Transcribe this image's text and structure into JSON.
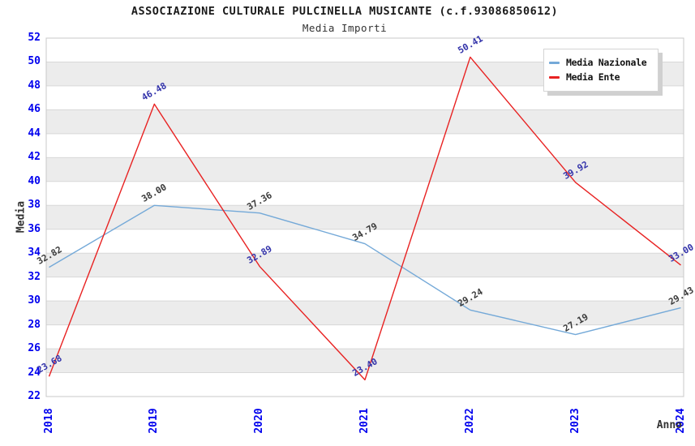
{
  "title": "ASSOCIAZIONE CULTURALE PULCINELLA MUSICANTE (c.f.93086850612)",
  "subtitle": "Media Importi",
  "chart_data": {
    "type": "line",
    "title": "ASSOCIAZIONE CULTURALE PULCINELLA MUSICANTE (c.f.93086850612)",
    "subtitle": "Media Importi",
    "x": [
      "2018",
      "2019",
      "2020",
      "2021",
      "2022",
      "2023",
      "2024"
    ],
    "series": [
      {
        "name": "Media Nazionale",
        "color": "#74a9d8",
        "label_color": "#3a3a3a",
        "values": [
          32.82,
          38.0,
          37.36,
          34.79,
          29.24,
          27.19,
          29.43
        ]
      },
      {
        "name": "Media Ente",
        "color": "#e82222",
        "label_color": "#3333aa",
        "values": [
          23.68,
          46.48,
          32.89,
          23.4,
          50.41,
          39.92,
          33.0
        ]
      }
    ],
    "xlabel": "Anno",
    "ylabel": "Media",
    "ylim": [
      22,
      52
    ],
    "ytick_step": 2,
    "yticks": [
      22,
      24,
      26,
      28,
      30,
      32,
      34,
      36,
      38,
      40,
      42,
      44,
      46,
      48,
      50,
      52
    ],
    "grid": true,
    "alternating_bands": true,
    "legend_position": "top-right"
  },
  "colors": {
    "tick_label": "#0000ee",
    "band": "#ececec",
    "grid_line": "#d8d8d8",
    "plot_border": "#c8c8c8",
    "axis_title": "#333333",
    "background": "#ffffff"
  }
}
